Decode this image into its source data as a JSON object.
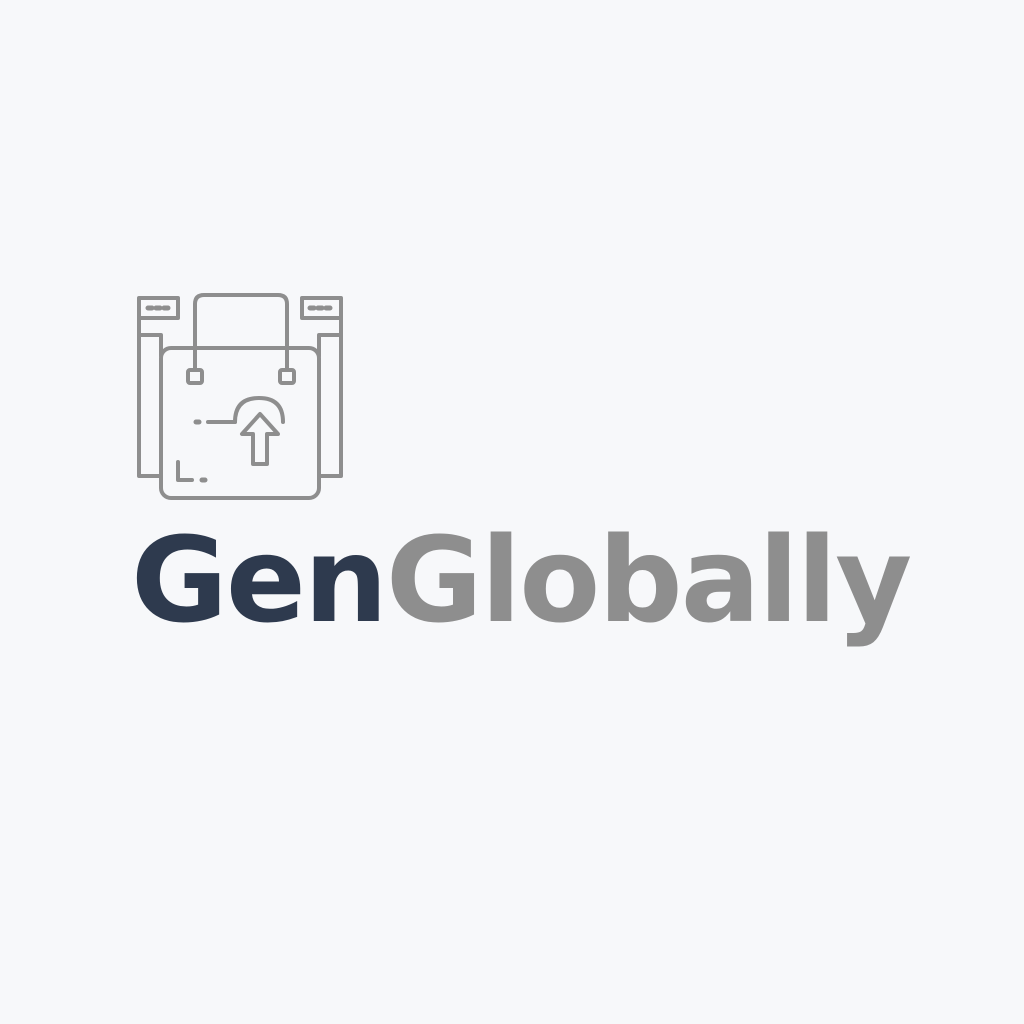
{
  "logo": {
    "icon": "shopping-bag-upload-icon",
    "word_primary": "Gen",
    "word_secondary": "Globally"
  },
  "colors": {
    "background": "#f7f8fa",
    "primary": "#2e3a4e",
    "secondary": "#8e8e8e"
  }
}
